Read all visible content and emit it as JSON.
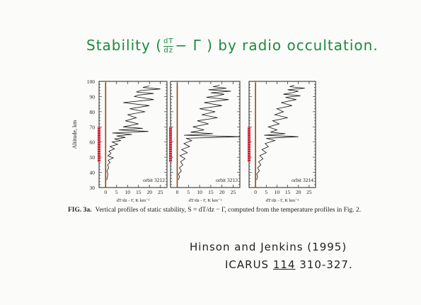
{
  "annotation": {
    "title_left": "Stability (",
    "title_numerator": "dT",
    "title_denominator": "dz",
    "title_right": "− Γ )  by radio occultation.",
    "author_line": "Hinson and Jenkins (1995)",
    "journal": "ICARUS",
    "volume": "114",
    "pages": "310-327."
  },
  "figure": {
    "caption_label": "FIG. 3a.",
    "caption_text": "Vertical profiles of static stability, S = dT/dz − Γ, computed from the temperature profiles in Fig. 2."
  },
  "chart_data": {
    "type": "line",
    "ylabel": "Altitude, km",
    "xlabel": "dT/dz - Γ, K km⁻¹",
    "ylim": [
      30,
      100
    ],
    "xlim": [
      -3,
      28
    ],
    "y_ticks": [
      30,
      40,
      50,
      60,
      70,
      80,
      90,
      100
    ],
    "x_ticks": [
      0,
      5,
      10,
      15,
      20,
      25
    ],
    "highlight_range_km": [
      47,
      70
    ],
    "highlight_color": "#cc2233",
    "panels": [
      {
        "name": "orbit 3212",
        "x": [
          0.5,
          0.8,
          1.0,
          0.6,
          1.4,
          0.9,
          2.0,
          1.2,
          3.5,
          1.0,
          2.5,
          1.5,
          4.0,
          2.0,
          5.5,
          3.0,
          7.0,
          4.0,
          9.0,
          5.0,
          12.0,
          3.0,
          19.5,
          6.0,
          17.0,
          8.0,
          15.0,
          9.0,
          14.0,
          10.0,
          18.0,
          11.0,
          20.0,
          8.0,
          22.0,
          13.0,
          15.0,
          22.0,
          14.0,
          16.0,
          25.0,
          17.0,
          20.0
        ],
        "y": [
          35,
          37,
          39,
          41,
          43,
          45,
          46.5,
          48,
          49.5,
          51,
          52.5,
          54,
          55.5,
          57,
          58.5,
          60,
          61,
          62,
          63,
          64,
          65,
          66,
          67,
          68,
          69,
          70,
          72,
          74,
          76,
          78,
          80,
          82,
          84,
          86,
          88,
          90,
          91,
          92,
          93,
          94,
          95,
          96,
          97
        ]
      },
      {
        "name": "orbit 3213",
        "x": [
          0.5,
          1.0,
          0.6,
          1.8,
          1.0,
          2.5,
          1.5,
          3.5,
          1.2,
          4.5,
          2.0,
          5.5,
          3.0,
          6.5,
          4.0,
          28.0,
          3.0,
          16.0,
          6.0,
          12.0,
          7.0,
          14.0,
          9.0,
          18.0,
          11.0,
          17.0,
          10.0,
          20.0,
          12.0,
          23.0,
          13.0,
          18.0,
          21.0,
          15.0,
          24.0,
          14.0,
          22.0,
          16.0,
          19.0
        ],
        "y": [
          35,
          37,
          39,
          41,
          43,
          45,
          47,
          49,
          51,
          53,
          55,
          57,
          59,
          61,
          62.5,
          63.5,
          64.5,
          65.5,
          66.5,
          68,
          70,
          72,
          74,
          76,
          78,
          80,
          82,
          84,
          86,
          88,
          89.5,
          90.5,
          91.5,
          92.5,
          93.5,
          94.5,
          95.5,
          96.5,
          97.5
        ]
      },
      {
        "name": "orbit 3214",
        "x": [
          0.5,
          1.0,
          0.6,
          1.8,
          1.0,
          2.5,
          1.5,
          3.5,
          2.0,
          5.0,
          3.0,
          6.0,
          4.5,
          9.0,
          5.0,
          20.0,
          4.0,
          14.0,
          7.0,
          10.0,
          6.0,
          11.0,
          8.0,
          15.0,
          9.0,
          13.0,
          10.0,
          17.0,
          12.0,
          19.0,
          14.0,
          21.0,
          13.0,
          17.0,
          20.0,
          15.0,
          23.0,
          16.0,
          18.0
        ],
        "y": [
          35,
          37,
          39,
          41,
          43,
          45,
          47,
          49,
          51,
          53,
          55,
          57,
          59,
          61,
          62.5,
          63.5,
          64.5,
          65.5,
          66.5,
          68,
          70,
          72,
          74,
          76,
          78,
          80,
          82,
          84,
          86,
          88,
          89.5,
          90.5,
          91.5,
          92.5,
          93.5,
          94.5,
          95.5,
          96.5,
          97.5
        ]
      }
    ]
  }
}
